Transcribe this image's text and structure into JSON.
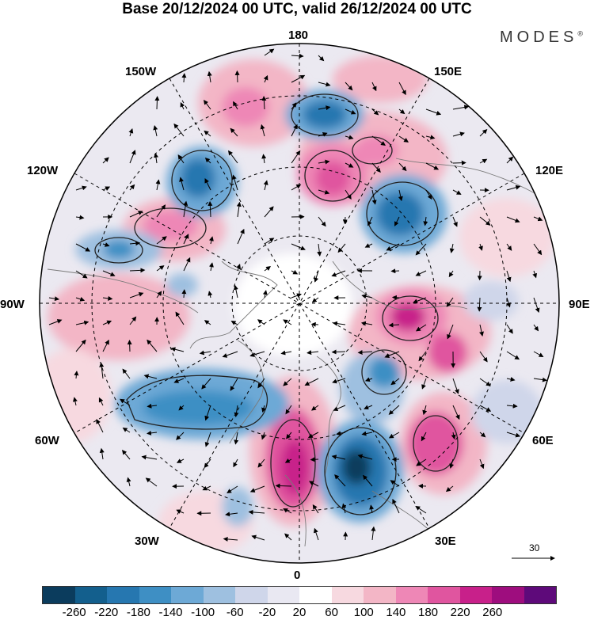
{
  "header": {
    "title": "Base 20/12/2024 00 UTC, valid 26/12/2024 00 UTC",
    "brand": "MODES",
    "brand_mark": "®"
  },
  "map": {
    "projection": "north-polar-stereographic",
    "labels": {
      "top": "180",
      "bottom": "0",
      "left": "90W",
      "right": "90E",
      "upper_left": "150W",
      "upper_right": "150E",
      "mid_upper_left": "120W",
      "mid_upper_right": "120E",
      "mid_lower_left": "60W",
      "mid_lower_right": "60E",
      "lower_left": "30W",
      "lower_right": "30E"
    },
    "reference_vector": "30",
    "anomaly_centers": [
      {
        "name": "pacific-low",
        "sign": "negative",
        "color": "#1f6aa4"
      },
      {
        "name": "east-asia-low",
        "sign": "negative",
        "color": "#2a7ab8"
      },
      {
        "name": "north-atlantic-low",
        "sign": "negative",
        "color": "#3b8cc0"
      },
      {
        "name": "europe-low",
        "sign": "negative",
        "color": "#0b4f7c"
      },
      {
        "name": "siberia-high",
        "sign": "positive",
        "color": "#c8389a"
      },
      {
        "name": "scandinavia-high",
        "sign": "positive",
        "color": "#c8389a"
      },
      {
        "name": "urals-high",
        "sign": "positive",
        "color": "#e05ab0"
      },
      {
        "name": "bering-high",
        "sign": "positive",
        "color": "#e06ab8"
      },
      {
        "name": "canada-high",
        "sign": "positive",
        "color": "#de68a8"
      }
    ]
  },
  "colorbar": {
    "colors": [
      "#0b3c5d",
      "#135f8d",
      "#2677b0",
      "#3e8fc4",
      "#6da9d6",
      "#9ec0e0",
      "#cfd6ea",
      "#e9e8f2",
      "#ffffff",
      "#f7d9e0",
      "#f3b6c6",
      "#ee87b6",
      "#e0559f",
      "#c8208a",
      "#9e0d7e",
      "#5e0a7a"
    ],
    "labels": [
      "-260",
      "-220",
      "-180",
      "-140",
      "-100",
      "-60",
      "-20",
      "20",
      "60",
      "100",
      "140",
      "180",
      "220",
      "260"
    ]
  }
}
